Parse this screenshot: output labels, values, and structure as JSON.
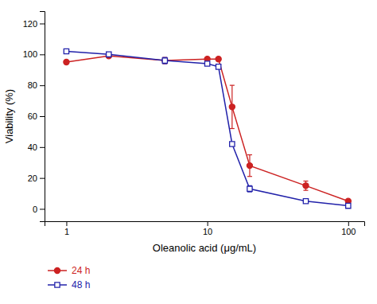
{
  "chart_data": {
    "type": "line",
    "x": [
      1,
      2,
      5,
      10,
      12,
      15,
      20,
      50,
      100
    ],
    "series": [
      {
        "name": "24 h",
        "color": "#cc2222",
        "marker": "filled-circle",
        "values": [
          95,
          99,
          96,
          97,
          97,
          66,
          28,
          15,
          5
        ],
        "errors": [
          0,
          0,
          2,
          0,
          0,
          14,
          7,
          3,
          1
        ]
      },
      {
        "name": "48 h",
        "color": "#2222aa",
        "marker": "open-square",
        "values": [
          102,
          100,
          96,
          94,
          92,
          42,
          13,
          5,
          2
        ],
        "errors": [
          0,
          0,
          2,
          0,
          0,
          0,
          2,
          1,
          1
        ]
      }
    ],
    "xlabel": "Oleanolic acid (μg/mL)",
    "ylabel": "Viability (%)",
    "log": "x",
    "xlim": [
      0.7,
      130
    ],
    "xticks": [
      1,
      10,
      100
    ],
    "ylim": [
      -8,
      128
    ],
    "yticks": [
      0,
      20,
      40,
      60,
      80,
      100,
      120
    ],
    "grid": false,
    "legend": "bottom"
  }
}
